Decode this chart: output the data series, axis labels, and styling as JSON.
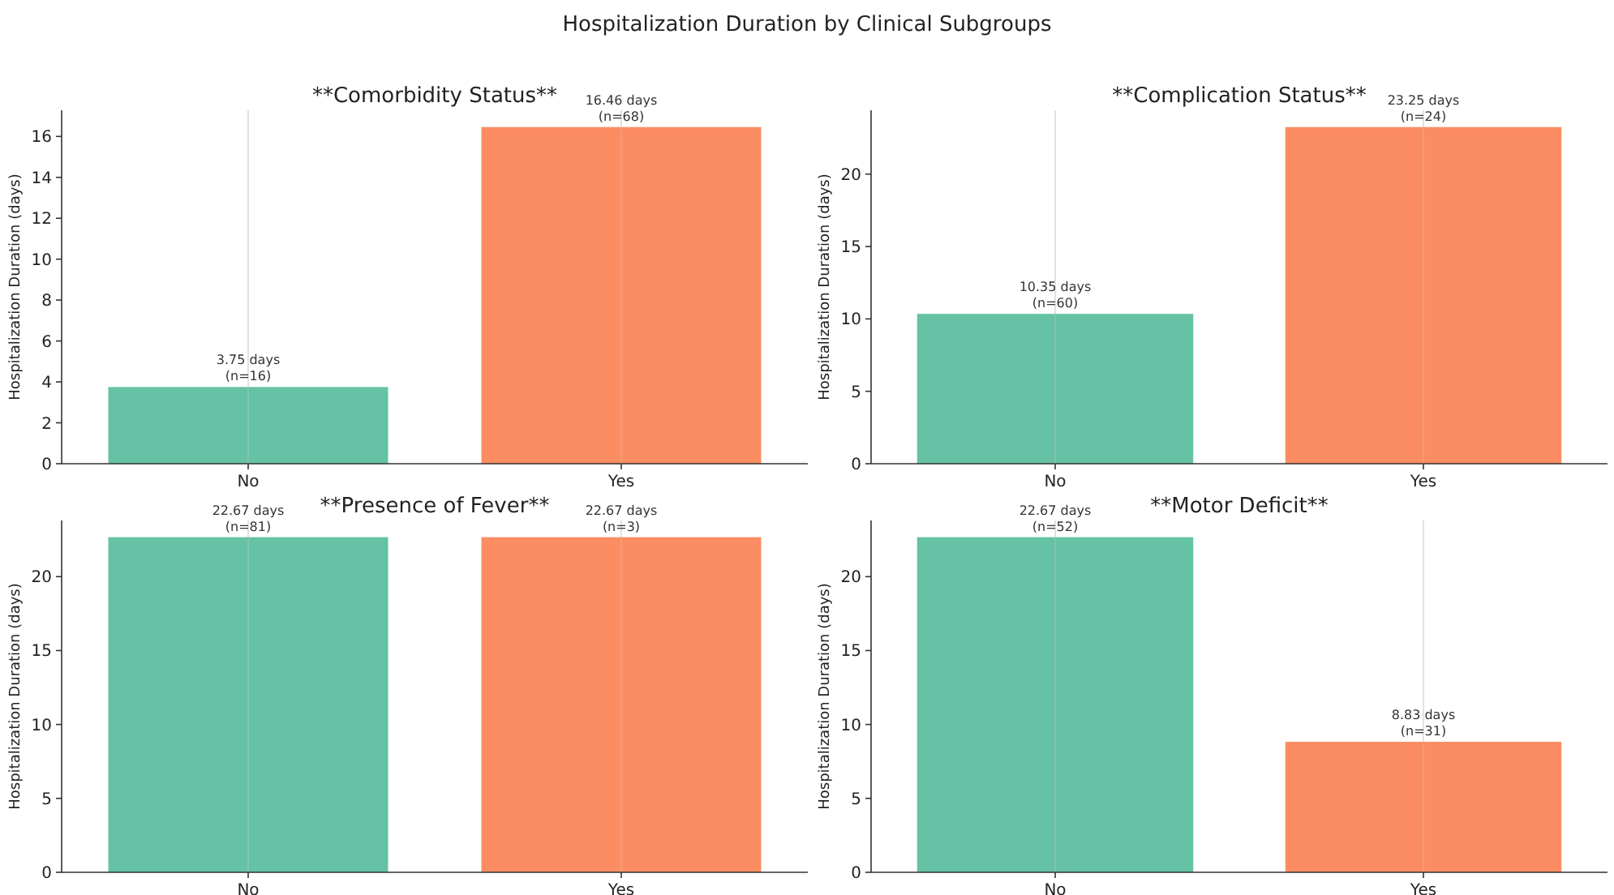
{
  "chart_data": [
    {
      "type": "bar",
      "title": "**Comorbidity Status**",
      "annotations": [
        "Hospitalization Duration by Clinical Subgroups"
      ],
      "ylabel": "Hospitalization Duration (days)",
      "categories": [
        "No",
        "Yes"
      ],
      "values": [
        3.75,
        16.46
      ],
      "colors": [
        "#66c2a5",
        "#fc8d62"
      ],
      "value_labels": [
        "3.75 days\n(n=16)",
        "16.46 days\n(n=68)"
      ],
      "ylim": [
        0,
        17.28
      ],
      "yticks": [
        0,
        2,
        4,
        6,
        8,
        10,
        12,
        14,
        16
      ],
      "grid": "x"
    },
    {
      "type": "bar",
      "title": "**Complication Status**",
      "ylabel": "Hospitalization Duration (days)",
      "categories": [
        "No",
        "Yes"
      ],
      "values": [
        10.35,
        23.25
      ],
      "colors": [
        "#66c2a5",
        "#fc8d62"
      ],
      "value_labels": [
        "10.35 days\n(n=60)",
        "23.25 days\n(n=24)"
      ],
      "ylim": [
        0,
        24.41
      ],
      "yticks": [
        0,
        5,
        10,
        15,
        20
      ],
      "grid": "x"
    },
    {
      "type": "bar",
      "title": "**Presence of Fever**",
      "ylabel": "Hospitalization Duration (days)",
      "categories": [
        "No",
        "Yes"
      ],
      "values": [
        22.67,
        22.67
      ],
      "colors": [
        "#66c2a5",
        "#fc8d62"
      ],
      "value_labels": [
        "22.67 days\n(n=81)",
        "22.67 days\n(n=3)"
      ],
      "ylim": [
        0,
        23.8
      ],
      "yticks": [
        0,
        5,
        10,
        15,
        20
      ],
      "grid": "x"
    },
    {
      "type": "bar",
      "title": "**Motor Deficit**",
      "ylabel": "Hospitalization Duration (days)",
      "categories": [
        "No",
        "Yes"
      ],
      "values": [
        22.67,
        8.83
      ],
      "colors": [
        "#66c2a5",
        "#fc8d62"
      ],
      "value_labels": [
        "22.67 days\n(n=52)",
        "8.83 days\n(n=31)"
      ],
      "ylim": [
        0,
        23.8
      ],
      "yticks": [
        0,
        5,
        10,
        15,
        20
      ],
      "grid": "x"
    }
  ]
}
